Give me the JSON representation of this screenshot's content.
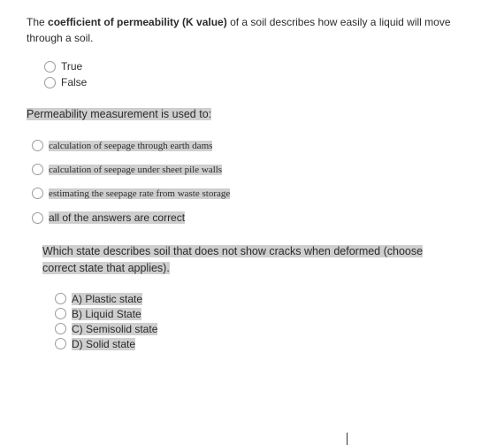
{
  "colors": {
    "highlight": "#cfcfcf",
    "text": "#2b2b2b",
    "radio_border": "#9b9b9b",
    "background": "#ffffff"
  },
  "q1": {
    "stem_pre": "The ",
    "stem_bold": "coefficient of permeability (K value)",
    "stem_post": " of a soil describes how easily a liquid will move through a soil.",
    "options": [
      "True",
      "False"
    ]
  },
  "q2": {
    "stem": "Permeability measurement is used to:",
    "options": [
      "calculation of seepage through earth dams",
      "calculation of seepage under sheet pile walls",
      "estimating the seepage rate from waste storage",
      "all of the answers are correct"
    ]
  },
  "q3": {
    "stem_line1": "Which state describes soil that does not show cracks when deformed (choose",
    "stem_line2": "correct state that applies).",
    "options": [
      "A) Plastic state",
      "B) Liquid State",
      "C) Semisolid state",
      "D) Solid state"
    ]
  }
}
